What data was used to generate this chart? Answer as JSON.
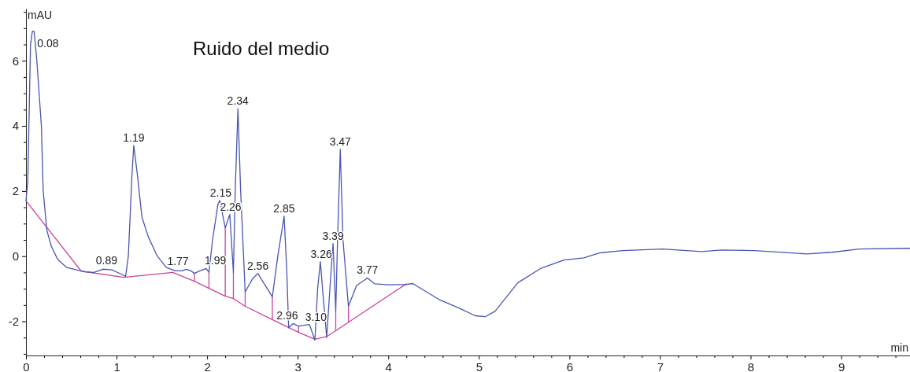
{
  "chart_data": {
    "type": "line",
    "title": "Ruido del medio",
    "xlabel": "min",
    "ylabel": "mAU",
    "xlim": [
      0,
      9.76
    ],
    "ylim": [
      -3.05,
      7.6
    ],
    "xticks": [
      0,
      {
        "value": 0.2,
        "label": null
      },
      {
        "value": 0.4,
        "label": null
      },
      {
        "value": 0.6,
        "label": null
      },
      {
        "value": 0.8,
        "label": null
      },
      1,
      {
        "value": 1.2,
        "label": null
      },
      {
        "value": 1.4,
        "label": null
      },
      {
        "value": 1.6,
        "label": null
      },
      {
        "value": 1.8,
        "label": null
      },
      2,
      {
        "value": 2.2,
        "label": null
      },
      {
        "value": 2.4,
        "label": null
      },
      {
        "value": 2.6,
        "label": null
      },
      {
        "value": 2.8,
        "label": null
      },
      3,
      {
        "value": 3.2,
        "label": null
      },
      {
        "value": 3.4,
        "label": null
      },
      {
        "value": 3.6,
        "label": null
      },
      {
        "value": 3.8,
        "label": null
      },
      4,
      {
        "value": 4.2,
        "label": null
      },
      {
        "value": 4.4,
        "label": null
      },
      {
        "value": 4.6,
        "label": null
      },
      {
        "value": 4.8,
        "label": null
      },
      5,
      {
        "value": 5.2,
        "label": null
      },
      {
        "value": 5.4,
        "label": null
      },
      {
        "value": 5.6,
        "label": null
      },
      {
        "value": 5.8,
        "label": null
      },
      6,
      {
        "value": 6.2,
        "label": null
      },
      {
        "value": 6.4,
        "label": null
      },
      {
        "value": 6.6,
        "label": null
      },
      {
        "value": 6.8,
        "label": null
      },
      7,
      {
        "value": 7.2,
        "label": null
      },
      {
        "value": 7.4,
        "label": null
      },
      {
        "value": 7.6,
        "label": null
      },
      {
        "value": 7.8,
        "label": null
      },
      8,
      {
        "value": 8.2,
        "label": null
      },
      {
        "value": 8.4,
        "label": null
      },
      {
        "value": 8.6,
        "label": null
      },
      {
        "value": 8.8,
        "label": null
      },
      9,
      {
        "value": 9.2,
        "label": null
      },
      {
        "value": 9.4,
        "label": null
      },
      {
        "value": 9.6,
        "label": null
      }
    ],
    "yticks": [
      {
        "value": -3,
        "label": null
      },
      {
        "value": -2.5,
        "label": null
      },
      -2,
      {
        "value": -1.5,
        "label": null
      },
      {
        "value": -1,
        "label": null
      },
      {
        "value": -0.5,
        "label": null
      },
      0,
      {
        "value": 0.5,
        "label": null
      },
      {
        "value": 1,
        "label": null
      },
      {
        "value": 1.5,
        "label": null
      },
      2,
      {
        "value": 2.5,
        "label": null
      },
      {
        "value": 3,
        "label": null
      },
      {
        "value": 3.5,
        "label": null
      },
      4,
      {
        "value": 4.5,
        "label": null
      },
      {
        "value": 5,
        "label": null
      },
      {
        "value": 5.5,
        "label": null
      },
      6,
      {
        "value": 6.5,
        "label": null
      },
      {
        "value": 7,
        "label": null
      },
      {
        "value": 7.5,
        "label": null
      }
    ],
    "grid": false,
    "series": [
      {
        "color": "#4a56b4",
        "x": [
          0,
          0.02,
          0.05,
          0.07,
          0.09,
          0.12,
          0.17,
          0.19,
          0.23,
          0.28,
          0.35,
          0.45,
          0.65,
          0.75,
          0.85,
          0.95,
          1.05,
          1.1,
          1.13,
          1.17,
          1.19,
          1.23,
          1.28,
          1.35,
          1.45,
          1.55,
          1.65,
          1.72,
          1.77,
          1.82,
          1.86,
          1.92,
          1.99,
          2.02,
          2.06,
          2.12,
          2.14,
          2.2,
          2.25,
          2.29,
          2.31,
          2.34,
          2.37,
          2.42,
          2.5,
          2.56,
          2.62,
          2.72,
          2.78,
          2.85,
          2.88,
          2.9,
          2.95,
          3.01,
          3.13,
          3.19,
          3.22,
          3.25,
          3.28,
          3.32,
          3.36,
          3.39,
          3.42,
          3.44,
          3.47,
          3.5,
          3.56,
          3.65,
          3.77,
          3.85,
          4.0,
          4.2,
          4.27,
          4.56,
          4.78,
          4.96,
          5.07,
          5.18,
          5.43,
          5.68,
          5.94,
          6.16,
          6.33,
          6.59,
          7.03,
          7.46,
          7.68,
          8.04,
          8.62,
          8.9,
          9.2,
          9.7,
          9.76
        ],
        "values": [
          1.7,
          2.3,
          6.5,
          6.9,
          6.9,
          6.0,
          4.0,
          2.0,
          0.8,
          0.3,
          -0.1,
          -0.35,
          -0.48,
          -0.5,
          -0.4,
          -0.42,
          -0.55,
          -0.62,
          0.0,
          2.5,
          3.4,
          2.5,
          1.2,
          0.6,
          0.0,
          -0.35,
          -0.45,
          -0.45,
          -0.4,
          -0.45,
          -0.53,
          -0.45,
          -0.38,
          -0.5,
          0.5,
          1.6,
          1.71,
          0.87,
          1.28,
          -0.5,
          2.0,
          4.53,
          2.0,
          -1.1,
          -0.7,
          -0.53,
          -0.8,
          -1.25,
          0.0,
          1.23,
          -0.5,
          -2.2,
          -2.07,
          -2.15,
          -2.1,
          -2.58,
          -1.0,
          -0.17,
          -1.2,
          -2.5,
          -0.8,
          0.39,
          -1.7,
          0.5,
          3.28,
          0.5,
          -1.54,
          -0.9,
          -0.67,
          -0.85,
          -0.88,
          -0.87,
          -0.84,
          -1.33,
          -1.59,
          -1.83,
          -1.86,
          -1.69,
          -0.82,
          -0.38,
          -0.12,
          -0.05,
          0.1,
          0.17,
          0.22,
          0.14,
          0.19,
          0.17,
          0.07,
          0.12,
          0.22,
          0.24,
          0.24
        ]
      },
      {
        "color": "#cc4499",
        "x": [
          0,
          0.61,
          1.08,
          1.62,
          1.86,
          1.86,
          1.86,
          2.02,
          2.02,
          2.02,
          2.2,
          2.2,
          2.2,
          2.29,
          2.29,
          2.29,
          2.42,
          2.42,
          2.42,
          2.72,
          2.72,
          2.72,
          3.01,
          3.01,
          3.01,
          3.19,
          3.32,
          3.42,
          3.42,
          3.42,
          3.56,
          3.56,
          3.56,
          4.2
        ],
        "values": [
          1.7,
          -0.46,
          -0.65,
          -0.5,
          -0.77,
          -0.53,
          -0.77,
          -0.99,
          -0.5,
          -0.99,
          -1.23,
          0.87,
          -1.23,
          -1.3,
          -0.5,
          -1.3,
          -1.54,
          -1.1,
          -1.54,
          -1.95,
          -1.25,
          -1.95,
          -2.34,
          -2.15,
          -2.34,
          -2.55,
          -2.47,
          -2.29,
          -1.7,
          -2.29,
          -2.03,
          -1.54,
          -2.03,
          -0.85
        ]
      }
    ],
    "annotations": [
      {
        "text": "0.08",
        "x": 0.08,
        "y": 6.9
      },
      {
        "text": "0.89",
        "x": 0.89,
        "y": -0.38
      },
      {
        "text": "1.19",
        "x": 1.19,
        "y": 3.4
      },
      {
        "text": "1.77",
        "x": 1.77,
        "y": -0.4
      },
      {
        "text": "1.99",
        "x": 1.99,
        "y": -0.38
      },
      {
        "text": "2.15",
        "x": 2.15,
        "y": 1.71
      },
      {
        "text": "2.26",
        "x": 2.26,
        "y": 1.28
      },
      {
        "text": "2.34",
        "x": 2.34,
        "y": 4.53
      },
      {
        "text": "2.56",
        "x": 2.56,
        "y": -0.53
      },
      {
        "text": "2.85",
        "x": 2.85,
        "y": 1.23
      },
      {
        "text": "2.96",
        "x": 2.96,
        "y": -2.07
      },
      {
        "text": "3.10",
        "x": 3.1,
        "y": -2.1
      },
      {
        "text": "3.26",
        "x": 3.26,
        "y": -0.17
      },
      {
        "text": "3.39",
        "x": 3.39,
        "y": 0.39
      },
      {
        "text": "3.47",
        "x": 3.47,
        "y": 3.28
      },
      {
        "text": "3.77",
        "x": 3.77,
        "y": -0.67
      }
    ]
  }
}
